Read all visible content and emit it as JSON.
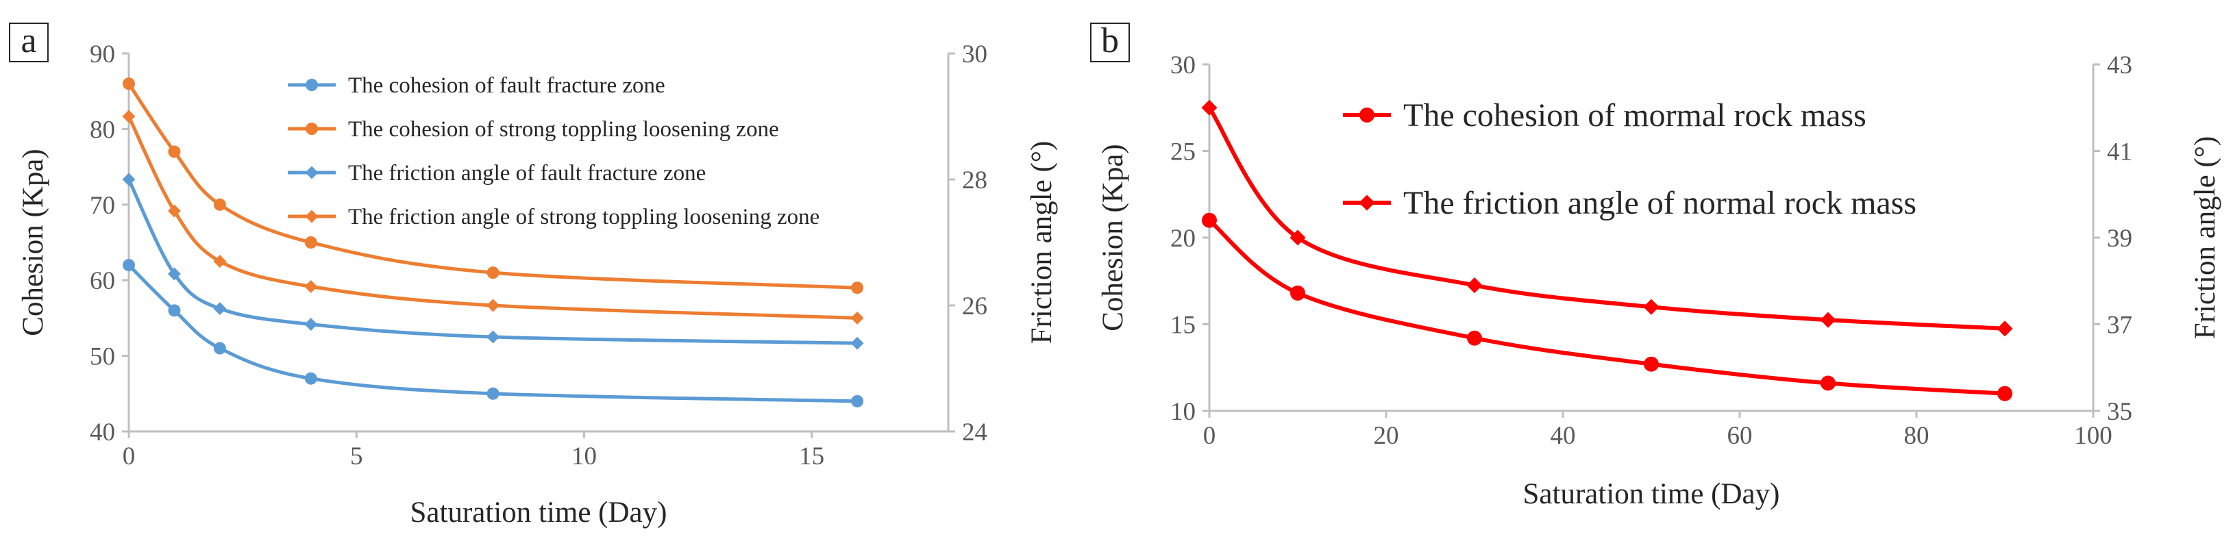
{
  "chart_data": [
    {
      "panel": "a",
      "type": "line",
      "xlabel": "Saturation time (Day)",
      "ylabel": "Cohesion (Kpa)",
      "y2label": "Friction angle (°)",
      "xlim": [
        0,
        18
      ],
      "ylim": [
        40,
        90
      ],
      "y2lim": [
        24,
        30
      ],
      "xticks": [
        "0",
        "5",
        "10",
        "15"
      ],
      "yticks": [
        "40",
        "50",
        "60",
        "70",
        "80",
        "90"
      ],
      "y2ticks": [
        "24",
        "26",
        "28",
        "30"
      ],
      "x": [
        0,
        1,
        2,
        4,
        8,
        16
      ],
      "legend_position": "top-right",
      "series": [
        {
          "name": "The cohesion of fault fracture zone",
          "axis": "left",
          "marker": "circle",
          "color": "#5B9BD5",
          "values": [
            62,
            56,
            51,
            47,
            45,
            44
          ]
        },
        {
          "name": "The cohesion of strong toppling loosening zone",
          "axis": "left",
          "marker": "circle",
          "color": "#ED7D31",
          "values": [
            86,
            77,
            70,
            65,
            61,
            59
          ]
        },
        {
          "name": "The friction angle of fault fracture zone",
          "axis": "right",
          "marker": "diamond",
          "color": "#5B9BD5",
          "values": [
            28.0,
            26.5,
            25.95,
            25.7,
            25.5,
            25.4
          ]
        },
        {
          "name": "The friction angle of strong toppling loosening zone",
          "axis": "right",
          "marker": "diamond",
          "color": "#ED7D31",
          "values": [
            29.0,
            27.5,
            26.7,
            26.3,
            26.0,
            25.8
          ]
        }
      ]
    },
    {
      "panel": "b",
      "type": "line",
      "xlabel": "Saturation time (Day)",
      "ylabel": "Cohesion (Kpa)",
      "y2label": "Friction angle (°)",
      "xlim": [
        0,
        100
      ],
      "ylim": [
        10,
        30
      ],
      "y2lim": [
        35,
        43
      ],
      "xticks": [
        "0",
        "20",
        "40",
        "60",
        "80",
        "100"
      ],
      "yticks": [
        "10",
        "15",
        "20",
        "25",
        "30"
      ],
      "y2ticks": [
        "35",
        "37",
        "39",
        "41",
        "43"
      ],
      "x": [
        0,
        10,
        30,
        50,
        70,
        90
      ],
      "legend_position": "top-center",
      "series": [
        {
          "name": "The cohesion of mormal rock mass",
          "axis": "left",
          "marker": "circle",
          "color": "#FF0000",
          "values": [
            21,
            16.8,
            14.2,
            12.7,
            11.6,
            11.0
          ]
        },
        {
          "name": "The friction angle of normal rock mass",
          "axis": "right",
          "marker": "diamond",
          "color": "#FF0000",
          "values": [
            42.0,
            39.0,
            37.9,
            37.4,
            37.1,
            36.9
          ]
        }
      ]
    }
  ]
}
